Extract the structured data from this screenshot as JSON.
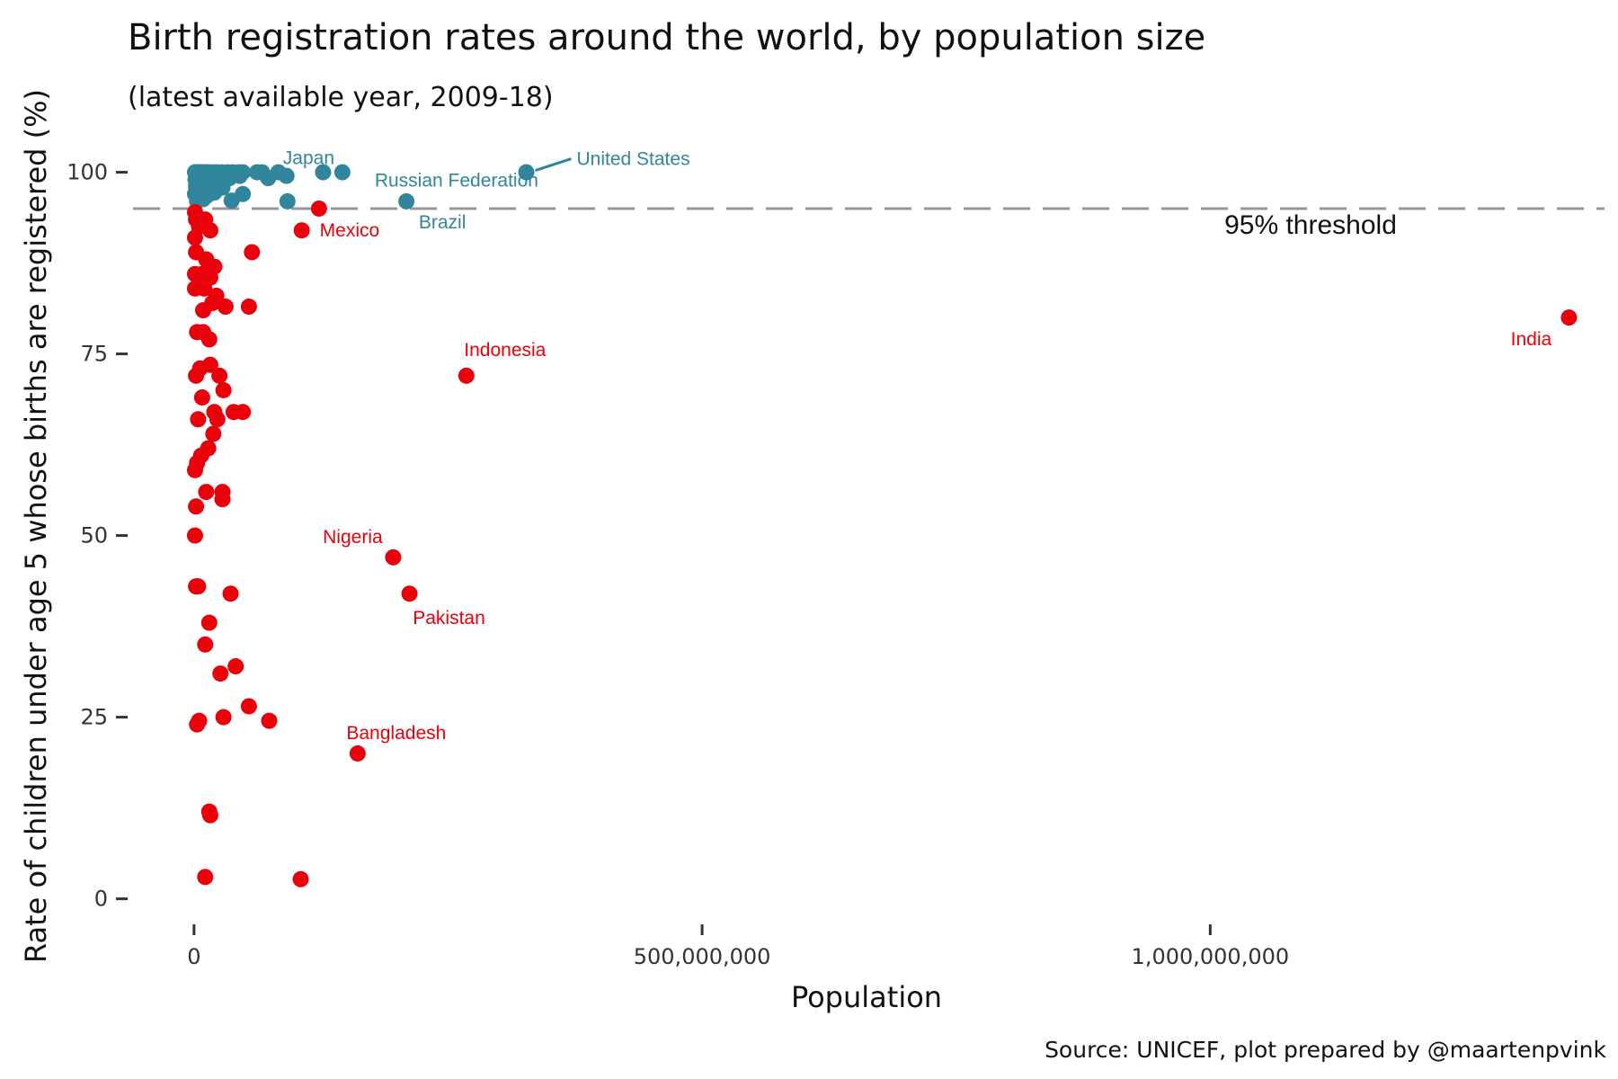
{
  "chart_data": {
    "type": "scatter",
    "title": "Birth registration rates around the world, by population size",
    "subtitle": "(latest available year, 2009-18)",
    "xlabel": "Population",
    "ylabel": "Rate of children under age 5 whose births are registered (%)",
    "caption": "Source: UNICEF, plot prepared by @maartenpvink",
    "xlim": [
      -60000000,
      1388000000
    ],
    "ylim": [
      -5,
      107
    ],
    "x_ticks": [
      0,
      500000000,
      1000000000
    ],
    "x_tick_labels": [
      "0",
      "500,000,000",
      "1,000,000,000"
    ],
    "y_ticks": [
      0,
      25,
      50,
      75,
      100
    ],
    "y_tick_labels": [
      "0",
      "25",
      "50",
      "75",
      "100"
    ],
    "grid": false,
    "legend": "none",
    "colors": {
      "above": "#31859c",
      "below": "#e8000b",
      "threshold_line": "#999999"
    },
    "threshold": {
      "value": 95,
      "label": "95% threshold"
    },
    "series": [
      {
        "group": "above",
        "points": [
          [
            1000000,
            100
          ],
          [
            3000000,
            100
          ],
          [
            5000000,
            100
          ],
          [
            7000000,
            100
          ],
          [
            9000000,
            100
          ],
          [
            11000000,
            100
          ],
          [
            14000000,
            100
          ],
          [
            18000000,
            100
          ],
          [
            22000000,
            100
          ],
          [
            27000000,
            100
          ],
          [
            33000000,
            100
          ],
          [
            38000000,
            100
          ],
          [
            44000000,
            100
          ],
          [
            48000000,
            100
          ],
          [
            62000000,
            100
          ],
          [
            67000000,
            100
          ],
          [
            83000000,
            100
          ],
          [
            91000000,
            99.5
          ],
          [
            73000000,
            99.2
          ],
          [
            127000000,
            100
          ],
          [
            146000000,
            100
          ],
          [
            327000000,
            100
          ],
          [
            1500000,
            99
          ],
          [
            4000000,
            99
          ],
          [
            8000000,
            98.8
          ],
          [
            12000000,
            99.3
          ],
          [
            19000000,
            99.1
          ],
          [
            24000000,
            98.9
          ],
          [
            35000000,
            99.2
          ],
          [
            45000000,
            99.5
          ],
          [
            2000000,
            98
          ],
          [
            6000000,
            97.5
          ],
          [
            10000000,
            97.8
          ],
          [
            16000000,
            98.2
          ],
          [
            28000000,
            97.9
          ],
          [
            1000000,
            97
          ],
          [
            5000000,
            96.5
          ],
          [
            13000000,
            96.8
          ],
          [
            20000000,
            97.2
          ],
          [
            48000000,
            97
          ],
          [
            3000000,
            96
          ],
          [
            9000000,
            96.3
          ],
          [
            37000000,
            96.1
          ],
          [
            92000000,
            96
          ],
          [
            209000000,
            96
          ]
        ]
      },
      {
        "group": "below",
        "points": [
          [
            1000000,
            94.5
          ],
          [
            2000000,
            93.5
          ],
          [
            5000000,
            92.5
          ],
          [
            11000000,
            93.5
          ],
          [
            16000000,
            92
          ],
          [
            123000000,
            95
          ],
          [
            106000000,
            92
          ],
          [
            1000000,
            91
          ],
          [
            2000000,
            89
          ],
          [
            57000000,
            89
          ],
          [
            12000000,
            88
          ],
          [
            20000000,
            87
          ],
          [
            1000000,
            86
          ],
          [
            8000000,
            86
          ],
          [
            16000000,
            85.5
          ],
          [
            1000000,
            84
          ],
          [
            10000000,
            84
          ],
          [
            22000000,
            83
          ],
          [
            18000000,
            82
          ],
          [
            31000000,
            81.5
          ],
          [
            9000000,
            81
          ],
          [
            54000000,
            81.5
          ],
          [
            1353000000,
            80
          ],
          [
            3000000,
            78
          ],
          [
            9000000,
            78
          ],
          [
            15000000,
            77
          ],
          [
            6000000,
            73
          ],
          [
            16000000,
            73.5
          ],
          [
            25000000,
            72
          ],
          [
            2000000,
            72
          ],
          [
            268000000,
            72
          ],
          [
            29000000,
            70
          ],
          [
            8000000,
            69
          ],
          [
            20000000,
            67
          ],
          [
            39000000,
            67
          ],
          [
            48000000,
            67
          ],
          [
            4000000,
            66
          ],
          [
            23000000,
            66
          ],
          [
            19000000,
            64
          ],
          [
            14000000,
            62
          ],
          [
            7000000,
            61
          ],
          [
            3000000,
            60
          ],
          [
            1000000,
            59
          ],
          [
            12000000,
            56
          ],
          [
            28000000,
            56
          ],
          [
            28000000,
            55
          ],
          [
            2000000,
            54
          ],
          [
            1000000,
            50
          ],
          [
            196000000,
            47
          ],
          [
            212000000,
            42
          ],
          [
            2000000,
            43
          ],
          [
            4000000,
            43
          ],
          [
            36000000,
            42
          ],
          [
            15000000,
            38
          ],
          [
            11000000,
            35
          ],
          [
            41000000,
            32
          ],
          [
            26000000,
            31
          ],
          [
            54000000,
            26.5
          ],
          [
            29000000,
            25
          ],
          [
            74000000,
            24.5
          ],
          [
            5000000,
            24.5
          ],
          [
            3000000,
            24
          ],
          [
            161000000,
            20
          ],
          [
            15000000,
            12
          ],
          [
            16000000,
            11.5
          ],
          [
            11000000,
            3
          ],
          [
            105000000,
            2.7
          ]
        ]
      }
    ],
    "labels": [
      {
        "text": "United States",
        "x": 327000000,
        "y": 100,
        "group": "above"
      },
      {
        "text": "Japan",
        "x": 127000000,
        "y": 100,
        "group": "above"
      },
      {
        "text": "Russian Federation",
        "x": 146000000,
        "y": 100,
        "group": "above"
      },
      {
        "text": "Brazil",
        "x": 209000000,
        "y": 96,
        "group": "above"
      },
      {
        "text": "Mexico",
        "x": 106000000,
        "y": 92,
        "group": "below"
      },
      {
        "text": "Indonesia",
        "x": 268000000,
        "y": 72,
        "group": "below"
      },
      {
        "text": "India",
        "x": 1353000000,
        "y": 80,
        "group": "below"
      },
      {
        "text": "Nigeria",
        "x": 196000000,
        "y": 47,
        "group": "below"
      },
      {
        "text": "Pakistan",
        "x": 212000000,
        "y": 42,
        "group": "below"
      },
      {
        "text": "Bangladesh",
        "x": 161000000,
        "y": 20,
        "group": "below"
      }
    ]
  }
}
